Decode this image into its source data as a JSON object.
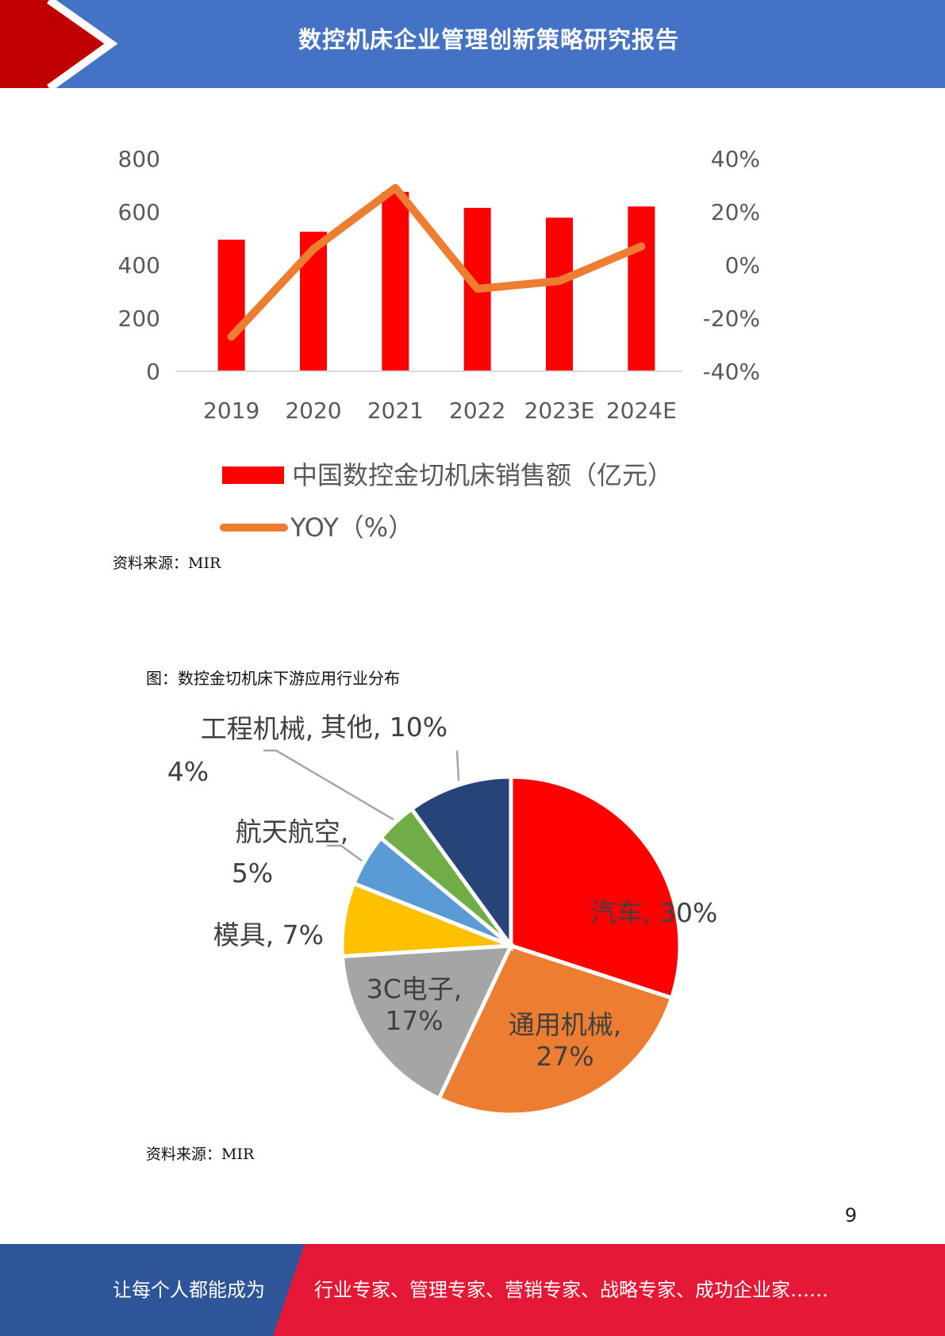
{
  "header": {
    "title": "数控机床企业管理创新策略研究报告",
    "colors": {
      "blue": "#4472C4",
      "red": "#C00000"
    }
  },
  "chart_data": [
    {
      "type": "bar",
      "categories": [
        "2019",
        "2020",
        "2021",
        "2022",
        "2023E",
        "2024E"
      ],
      "series": [
        {
          "name": "中国数控金切机床销售额（亿元）",
          "type": "bar",
          "axis": "left",
          "color": "#FF0000",
          "values": [
            495,
            525,
            675,
            615,
            578,
            620
          ]
        },
        {
          "name": "YOY（%）",
          "type": "line",
          "axis": "right",
          "color": "#ED7D31",
          "values": [
            -27,
            6,
            29,
            -9,
            -6,
            7
          ]
        }
      ],
      "y_left": {
        "ticks": [
          "0",
          "200",
          "400",
          "600",
          "800"
        ],
        "min": 0,
        "max": 800
      },
      "y_right": {
        "ticks": [
          "-40%",
          "-20%",
          "0%",
          "20%",
          "40%"
        ],
        "min": -40,
        "max": 40
      },
      "legend_placement": "bottom",
      "grid": false
    },
    {
      "type": "pie",
      "slices": [
        {
          "label": "汽车, 30%",
          "value": 30,
          "color": "#FF0000"
        },
        {
          "label": "通用机械, 27%",
          "value": 27,
          "color": "#ED7D31"
        },
        {
          "label": "3C电子, 17%",
          "value": 17,
          "color": "#A5A5A5"
        },
        {
          "label": "模具, 7%",
          "value": 7,
          "color": "#FFC000"
        },
        {
          "label": "航天航空, 5%",
          "value": 5,
          "color": "#5B9BD5"
        },
        {
          "label": "工程机械, 4%",
          "value": 4,
          "color": "#70AD47"
        },
        {
          "label": "其他, 10%",
          "value": 10,
          "color": "#264478"
        }
      ]
    }
  ],
  "source1": "资料来源：MIR",
  "caption2": "图：数控金切机床下游应用行业分布",
  "source2": "资料来源：MIR",
  "page_number": "9",
  "footer": {
    "left_text": "让每个人都能成为",
    "right_text": "行业专家、管理专家、营销专家、战略专家、成功企业家……",
    "colors": {
      "blue": "#2E5597",
      "red": "#E51937"
    }
  }
}
